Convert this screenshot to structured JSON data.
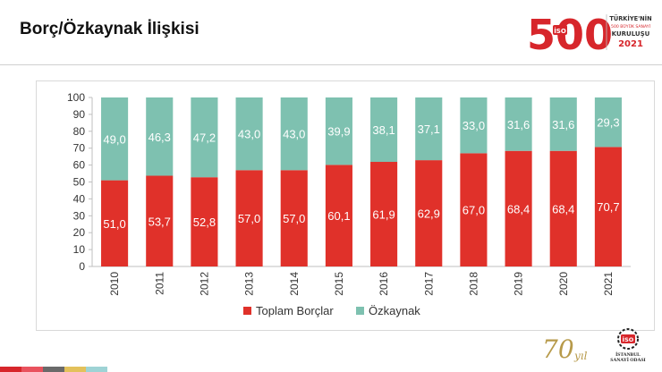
{
  "header": {
    "title": "Borç/Özkaynak İlişkisi",
    "logo_500": {
      "number": "500",
      "line1": "TÜRKİYE'NİN",
      "line2": "500 BÜYÜK SANAYİ",
      "line3": "KURULUŞU",
      "year": "2021",
      "badge": "İSO"
    }
  },
  "footer": {
    "logo_70": {
      "number": "70",
      "suffix": "yıl"
    },
    "iso_logo": {
      "badge": "İSO",
      "line1": "İSTANBUL",
      "line2": "SANAYİ ODASI"
    },
    "strip_colors": [
      "#d7262b",
      "#e9525e",
      "#6a6a6a",
      "#e3c15b",
      "#9ed3d5"
    ]
  },
  "colors": {
    "borrowings": "#e0312a",
    "equity": "#7ec1b0",
    "brand_red": "#d7262b"
  },
  "chart_data": {
    "type": "bar",
    "stacked": true,
    "categories": [
      "2010",
      "2011",
      "2012",
      "2013",
      "2014",
      "2015",
      "2016",
      "2017",
      "2018",
      "2019",
      "2020",
      "2021"
    ],
    "series": [
      {
        "name": "Toplam Borçlar",
        "color": "#e0312a",
        "values": [
          51.0,
          53.7,
          52.8,
          57.0,
          57.0,
          60.1,
          61.9,
          62.9,
          67.0,
          68.4,
          68.4,
          70.7
        ],
        "labels": [
          "51,0",
          "53,7",
          "52,8",
          "57,0",
          "57,0",
          "60,1",
          "61,9",
          "62,9",
          "67,0",
          "68,4",
          "68,4",
          "70,7"
        ]
      },
      {
        "name": "Özkaynak",
        "color": "#7ec1b0",
        "values": [
          49.0,
          46.3,
          47.2,
          43.0,
          43.0,
          39.9,
          38.1,
          37.1,
          33.0,
          31.6,
          31.6,
          29.3
        ],
        "labels": [
          "49,0",
          "46,3",
          "47,2",
          "43,0",
          "43,0",
          "39,9",
          "38,1",
          "37,1",
          "33,0",
          "31,6",
          "31,6",
          "29,3"
        ]
      }
    ],
    "yticks": [
      "0",
      "10",
      "20",
      "30",
      "40",
      "50",
      "60",
      "70",
      "80",
      "90",
      "100"
    ],
    "ylim": [
      0,
      100
    ],
    "grid": false,
    "legend": "bottom"
  }
}
